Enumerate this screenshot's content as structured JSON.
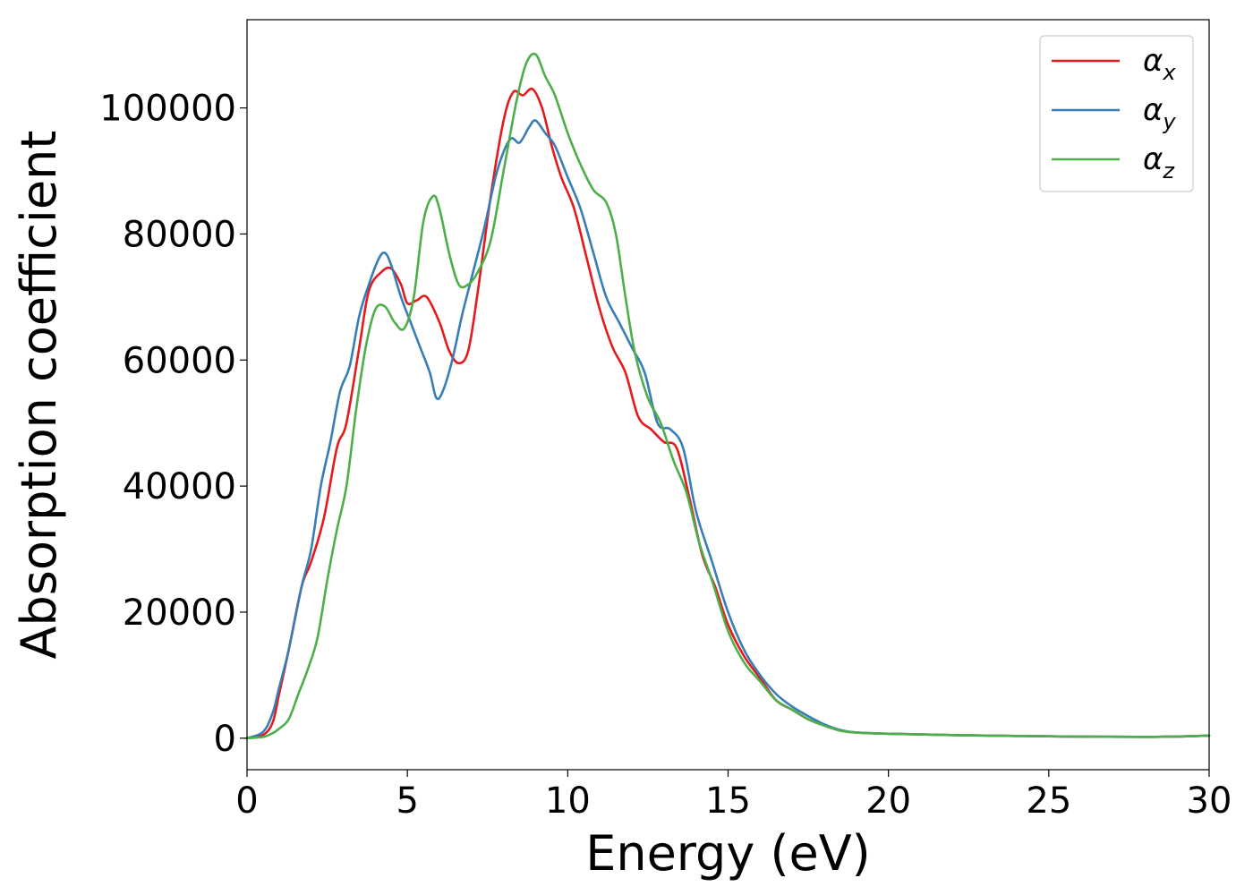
{
  "chart_data": {
    "type": "line",
    "title": "",
    "xlabel": "Energy (eV)",
    "ylabel": "Absorption coefficient",
    "xlim": [
      0,
      30
    ],
    "ylim": [
      -5000,
      114000
    ],
    "xticks": [
      0,
      5,
      10,
      15,
      20,
      25,
      30
    ],
    "yticks": [
      0,
      20000,
      40000,
      60000,
      80000,
      100000
    ],
    "grid": false,
    "legend_position": "top-right",
    "series": [
      {
        "name": "αx",
        "label_base": "α",
        "label_sub": "x",
        "color": "#e41a1c",
        "x": [
          0,
          0.5,
          0.8,
          1.0,
          1.3,
          1.7,
          2.0,
          2.4,
          2.8,
          3.1,
          3.5,
          3.8,
          4.2,
          4.5,
          4.8,
          5.0,
          5.3,
          5.6,
          6.0,
          6.3,
          6.6,
          6.9,
          7.2,
          7.6,
          8.0,
          8.3,
          8.6,
          8.9,
          9.2,
          9.5,
          9.8,
          10.2,
          10.6,
          11.0,
          11.4,
          11.8,
          12.2,
          12.6,
          13.0,
          13.4,
          13.8,
          14.2,
          14.6,
          15.0,
          15.5,
          16.0,
          16.5,
          17.0,
          17.5,
          18.0,
          18.5,
          19.0,
          20.0,
          22.0,
          25.0,
          28.0,
          30.0
        ],
        "y": [
          0,
          500,
          2500,
          7000,
          14000,
          24000,
          28000,
          35000,
          46000,
          50000,
          62000,
          71000,
          74000,
          74500,
          72000,
          69000,
          69500,
          70000,
          66000,
          61500,
          59500,
          61500,
          71000,
          86000,
          98000,
          102500,
          102000,
          103000,
          100000,
          94000,
          89000,
          84000,
          76000,
          68000,
          62000,
          58000,
          51000,
          49000,
          47000,
          46000,
          38000,
          29000,
          24000,
          18000,
          13000,
          9500,
          6000,
          4500,
          3000,
          2000,
          1200,
          900,
          700,
          500,
          300,
          200,
          400
        ]
      },
      {
        "name": "αy",
        "label_base": "α",
        "label_sub": "y",
        "color": "#377eb8",
        "x": [
          0,
          0.5,
          0.8,
          1.0,
          1.3,
          1.7,
          2.0,
          2.3,
          2.6,
          2.9,
          3.2,
          3.5,
          3.8,
          4.1,
          4.3,
          4.5,
          4.8,
          5.1,
          5.4,
          5.7,
          5.9,
          6.1,
          6.4,
          6.7,
          7.0,
          7.4,
          7.8,
          8.2,
          8.5,
          8.8,
          9.0,
          9.3,
          9.6,
          10.0,
          10.4,
          10.8,
          11.2,
          11.6,
          12.0,
          12.4,
          12.8,
          13.2,
          13.6,
          14.0,
          14.5,
          15.0,
          15.5,
          16.0,
          16.5,
          17.0,
          17.5,
          18.0,
          18.5,
          19.0,
          20.0,
          22.0,
          25.0,
          28.0,
          30.0
        ],
        "y": [
          0,
          1000,
          4000,
          8000,
          14000,
          24000,
          30000,
          40000,
          47000,
          55000,
          59000,
          67000,
          72000,
          76000,
          77000,
          75000,
          70000,
          66000,
          62000,
          58000,
          54000,
          55000,
          60000,
          67000,
          73000,
          81000,
          90000,
          95000,
          94500,
          97000,
          98000,
          96000,
          94000,
          89000,
          84000,
          77000,
          70000,
          66000,
          62000,
          58000,
          50000,
          49000,
          46000,
          36000,
          28000,
          20000,
          14000,
          10000,
          7000,
          5000,
          3500,
          2200,
          1300,
          900,
          700,
          500,
          300,
          200,
          400
        ]
      },
      {
        "name": "αz",
        "label_base": "α",
        "label_sub": "z",
        "color": "#4daf4a",
        "x": [
          0,
          0.5,
          0.8,
          1.0,
          1.3,
          1.6,
          1.9,
          2.2,
          2.5,
          2.8,
          3.1,
          3.4,
          3.7,
          4.0,
          4.3,
          4.6,
          4.9,
          5.2,
          5.5,
          5.8,
          6.0,
          6.3,
          6.6,
          6.9,
          7.2,
          7.6,
          8.0,
          8.4,
          8.7,
          9.0,
          9.3,
          9.6,
          10.0,
          10.4,
          10.8,
          11.2,
          11.5,
          11.8,
          12.1,
          12.5,
          12.9,
          13.3,
          13.7,
          14.1,
          14.5,
          15.0,
          15.5,
          16.0,
          16.5,
          17.0,
          17.5,
          18.0,
          18.5,
          19.0,
          20.0,
          22.0,
          25.0,
          28.0,
          30.0
        ],
        "y": [
          0,
          200,
          800,
          1500,
          3000,
          7000,
          11000,
          16000,
          25000,
          33000,
          40000,
          52000,
          62000,
          68000,
          68500,
          66000,
          65000,
          70000,
          82000,
          86000,
          84000,
          77000,
          72000,
          72000,
          74000,
          79000,
          90000,
          101000,
          107000,
          108500,
          105000,
          102000,
          96000,
          91000,
          87000,
          85000,
          80000,
          70000,
          61000,
          54000,
          50000,
          44000,
          39000,
          31000,
          25000,
          17000,
          12000,
          9000,
          6000,
          4500,
          3000,
          2000,
          1200,
          900,
          700,
          500,
          300,
          200,
          400
        ]
      }
    ]
  }
}
